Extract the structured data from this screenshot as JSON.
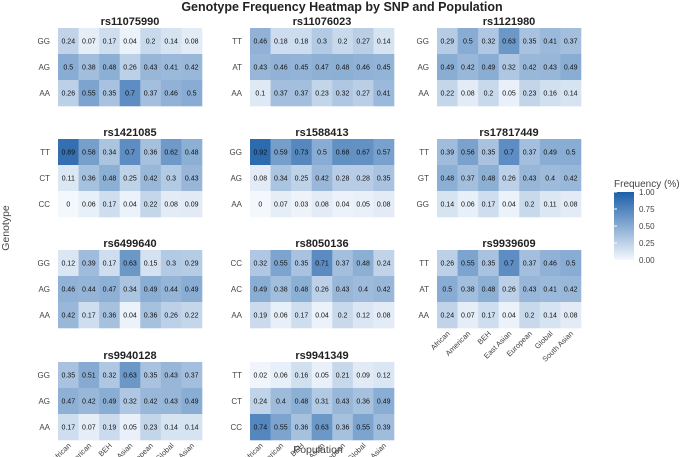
{
  "chart_data": {
    "type": "heatmap",
    "title": "Genotype Frequency Heatmap by SNP and Population",
    "xlabel": "Population",
    "ylabel": "Genotype",
    "populations": [
      "African",
      "American",
      "BEH",
      "East Asian",
      "European",
      "Global",
      "South Asian"
    ],
    "legend": {
      "title": "Frequency (%)",
      "ticks": [
        "1.00",
        "0.75",
        "0.50",
        "0.25",
        "0.00"
      ],
      "range": [
        0,
        1
      ],
      "low_color": "#f4f8fd",
      "high_color": "#1c5fa8"
    },
    "panels": [
      {
        "snp": "rs11075990",
        "genotypes": [
          "GG",
          "AG",
          "AA"
        ],
        "values": [
          [
            0.24,
            0.07,
            0.17,
            0.04,
            0.2,
            0.14,
            0.08
          ],
          [
            0.5,
            0.38,
            0.48,
            0.26,
            0.43,
            0.41,
            0.42
          ],
          [
            0.26,
            0.55,
            0.35,
            0.7,
            0.37,
            0.46,
            0.5
          ]
        ]
      },
      {
        "snp": "rs11076023",
        "genotypes": [
          "TT",
          "AT",
          "AA"
        ],
        "values": [
          [
            0.46,
            0.18,
            0.18,
            0.3,
            0.2,
            0.27,
            0.14
          ],
          [
            0.43,
            0.46,
            0.45,
            0.47,
            0.48,
            0.46,
            0.45
          ],
          [
            0.1,
            0.37,
            0.37,
            0.23,
            0.32,
            0.27,
            0.41
          ]
        ]
      },
      {
        "snp": "rs1121980",
        "genotypes": [
          "GG",
          "AG",
          "AA"
        ],
        "values": [
          [
            0.29,
            0.5,
            0.32,
            0.63,
            0.35,
            0.41,
            0.37
          ],
          [
            0.49,
            0.42,
            0.49,
            0.32,
            0.42,
            0.43,
            0.49
          ],
          [
            0.22,
            0.08,
            0.2,
            0.05,
            0.23,
            0.16,
            0.14
          ]
        ]
      },
      {
        "snp": "rs1421085",
        "genotypes": [
          "TT",
          "CT",
          "CC"
        ],
        "values": [
          [
            0.89,
            0.58,
            0.34,
            0.7,
            0.36,
            0.62,
            0.48
          ],
          [
            0.11,
            0.36,
            0.48,
            0.25,
            0.42,
            0.3,
            0.43
          ],
          [
            0,
            0.06,
            0.17,
            0.04,
            0.22,
            0.08,
            0.09
          ]
        ]
      },
      {
        "snp": "rs1588413",
        "genotypes": [
          "GG",
          "AG",
          "AA"
        ],
        "values": [
          [
            0.92,
            0.59,
            0.73,
            0.5,
            0.68,
            0.67,
            0.57
          ],
          [
            0.08,
            0.34,
            0.25,
            0.42,
            0.28,
            0.28,
            0.35
          ],
          [
            0,
            0.07,
            0.03,
            0.08,
            0.04,
            0.05,
            0.08
          ]
        ]
      },
      {
        "snp": "rs17817449",
        "genotypes": [
          "TT",
          "GT",
          "GG"
        ],
        "values": [
          [
            0.39,
            0.56,
            0.35,
            0.7,
            0.37,
            0.49,
            0.5
          ],
          [
            0.48,
            0.37,
            0.48,
            0.26,
            0.43,
            0.4,
            0.42
          ],
          [
            0.14,
            0.06,
            0.17,
            0.04,
            0.2,
            0.11,
            0.08
          ]
        ]
      },
      {
        "snp": "rs6499640",
        "genotypes": [
          "GG",
          "AG",
          "AA"
        ],
        "values": [
          [
            0.12,
            0.39,
            0.17,
            0.63,
            0.15,
            0.3,
            0.29
          ],
          [
            0.46,
            0.44,
            0.47,
            0.34,
            0.49,
            0.44,
            0.49
          ],
          [
            0.42,
            0.17,
            0.36,
            0.04,
            0.36,
            0.26,
            0.22
          ]
        ]
      },
      {
        "snp": "rs8050136",
        "genotypes": [
          "CC",
          "AC",
          "AA"
        ],
        "values": [
          [
            0.32,
            0.55,
            0.35,
            0.71,
            0.37,
            0.48,
            0.24
          ],
          [
            0.49,
            0.38,
            0.48,
            0.26,
            0.43,
            0.4,
            0.42
          ],
          [
            0.19,
            0.06,
            0.17,
            0.04,
            0.2,
            0.12,
            0.08
          ]
        ]
      },
      {
        "snp": "rs9939609",
        "genotypes": [
          "TT",
          "AT",
          "AA"
        ],
        "values": [
          [
            0.26,
            0.55,
            0.35,
            0.7,
            0.37,
            0.46,
            0.5
          ],
          [
            0.5,
            0.38,
            0.48,
            0.26,
            0.43,
            0.41,
            0.42
          ],
          [
            0.24,
            0.07,
            0.17,
            0.04,
            0.2,
            0.14,
            0.08
          ]
        ]
      },
      {
        "snp": "rs9940128",
        "genotypes": [
          "GG",
          "AG",
          "AA"
        ],
        "values": [
          [
            0.35,
            0.51,
            0.32,
            0.63,
            0.35,
            0.43,
            0.37
          ],
          [
            0.47,
            0.42,
            0.49,
            0.32,
            0.42,
            0.43,
            0.49
          ],
          [
            0.17,
            0.07,
            0.19,
            0.05,
            0.23,
            0.14,
            0.14
          ]
        ]
      },
      {
        "snp": "rs9941349",
        "genotypes": [
          "TT",
          "CT",
          "CC"
        ],
        "values": [
          [
            0.02,
            0.06,
            0.16,
            0.05,
            0.21,
            0.09,
            0.12
          ],
          [
            0.24,
            0.4,
            0.48,
            0.31,
            0.43,
            0.36,
            0.49
          ],
          [
            0.74,
            0.55,
            0.36,
            0.63,
            0.36,
            0.55,
            0.39
          ]
        ]
      }
    ]
  }
}
